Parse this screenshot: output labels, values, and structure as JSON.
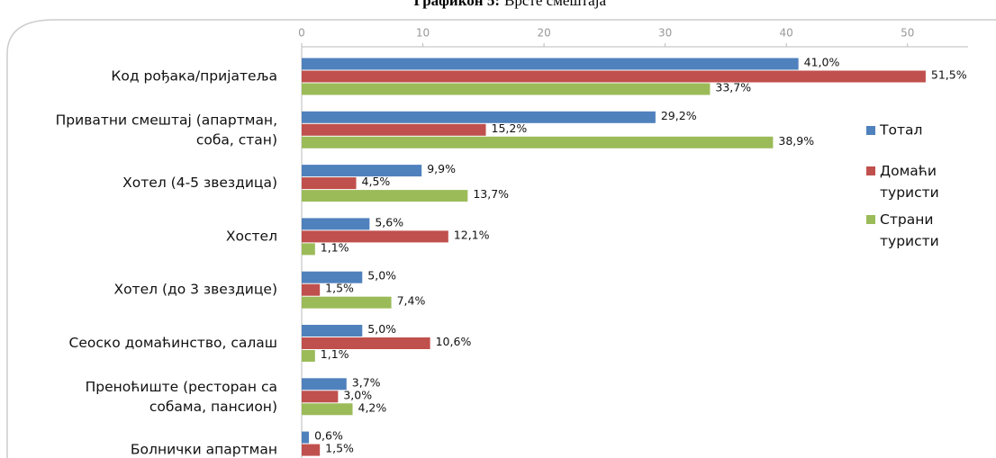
{
  "chart_data": {
    "type": "hbar",
    "title_label": "Графикон 5:",
    "title": "Врсте смештаја",
    "categories": [
      "Код рођака/пријатеља",
      "Приватни смештај (апартман,\nсоба, стан)",
      "Хотел (4-5 звездица)",
      "Хостел",
      "Хотел (до 3 звездице)",
      "Сеоско домаћинство, салаш",
      "Преноћиште (ресторан са\nсобама, пансион)",
      "Болнички апартман"
    ],
    "series": [
      {
        "name": "Тотал",
        "color": "#4f81bd",
        "values": [
          41.0,
          29.2,
          9.9,
          5.6,
          5.0,
          5.0,
          3.7,
          0.6
        ],
        "value_labels": [
          "41,0%",
          "29,2%",
          "9,9%",
          "5,6%",
          "5,0%",
          "5,0%",
          "3,7%",
          "0,6%"
        ]
      },
      {
        "name": "Домаћи\nтуристи",
        "color": "#c0504d",
        "values": [
          51.5,
          15.2,
          4.5,
          12.1,
          1.5,
          10.6,
          3.0,
          1.5
        ],
        "value_labels": [
          "51,5%",
          "15,2%",
          "4,5%",
          "12,1%",
          "1,5%",
          "10,6%",
          "3,0%",
          "1,5%"
        ]
      },
      {
        "name": "Страни\nтуристи",
        "color": "#9bbb59",
        "values": [
          33.7,
          38.9,
          13.7,
          1.1,
          7.4,
          1.1,
          4.2,
          null
        ],
        "value_labels": [
          "33,7%",
          "38,9%",
          "13,7%",
          "1,1%",
          "7,4%",
          "1,1%",
          "4,2%",
          null
        ]
      }
    ],
    "xlim": [
      0,
      55
    ],
    "xticks": [
      0,
      10,
      20,
      30,
      40,
      50
    ],
    "legend": "right"
  }
}
